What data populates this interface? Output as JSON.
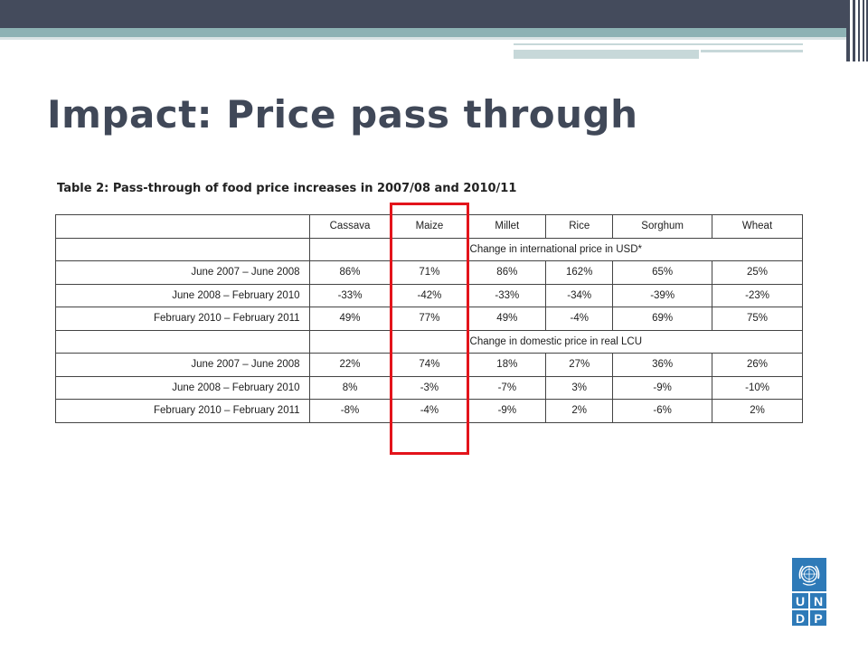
{
  "slide": {
    "title": "Impact: Price pass through",
    "table_caption": "Table 2: Pass-through of food price increases in 2007/08 and 2010/11",
    "highlight_color": "#e3141b",
    "accent_colors": {
      "dark": "#444b5c",
      "teal": "#8db2b4"
    }
  },
  "table": {
    "columns": [
      "Cassava",
      "Maize",
      "Millet",
      "Rice",
      "Sorghum",
      "Wheat"
    ],
    "sections": [
      {
        "heading": "Change in international price in USD*",
        "rows": [
          {
            "label": "June 2007 – June 2008",
            "values": [
              "86%",
              "71%",
              "86%",
              "162%",
              "65%",
              "25%"
            ]
          },
          {
            "label": "June 2008 – February 2010",
            "values": [
              "-33%",
              "-42%",
              "-33%",
              "-34%",
              "-39%",
              "-23%"
            ]
          },
          {
            "label": "February 2010 – February 2011",
            "values": [
              "49%",
              "77%",
              "49%",
              "-4%",
              "69%",
              "75%"
            ]
          }
        ]
      },
      {
        "heading": "Change in domestic price in real LCU",
        "rows": [
          {
            "label": "June 2007 – June 2008",
            "values": [
              "22%",
              "74%",
              "18%",
              "27%",
              "36%",
              "26%"
            ]
          },
          {
            "label": "June 2008 – February 2010",
            "values": [
              "8%",
              "-3%",
              "-7%",
              "3%",
              "-9%",
              "-10%"
            ]
          },
          {
            "label": "February 2010 – February 2011",
            "values": [
              "-8%",
              "-4%",
              "-9%",
              "2%",
              "-6%",
              "2%"
            ]
          }
        ]
      }
    ]
  },
  "logo": {
    "letters": [
      "U",
      "N",
      "D",
      "P"
    ],
    "icon": "un-emblem-icon",
    "color": "#2e7ab8"
  }
}
